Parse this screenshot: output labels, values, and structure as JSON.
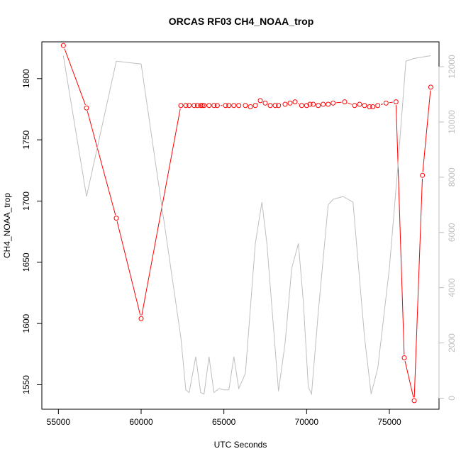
{
  "chart_data": {
    "type": "line",
    "title": "ORCAS RF03 CH4_NOAA_trop",
    "xlabel": "UTC Seconds",
    "ylabel": "CH4_NOAA_trop",
    "xlim": [
      54000,
      78000
    ],
    "ylim": [
      1530,
      1830
    ],
    "y2lim": [
      -400,
      12900
    ],
    "x_ticks": [
      55000,
      60000,
      65000,
      70000,
      75000
    ],
    "y_ticks": [
      1550,
      1600,
      1650,
      1700,
      1750,
      1800
    ],
    "y2_ticks": [
      0,
      2000,
      4000,
      6000,
      8000,
      10000,
      12000
    ],
    "series": [
      {
        "axis": "left",
        "color": "#ff0000",
        "style": "line+open-circle",
        "points": [
          [
            55300,
            1827
          ],
          [
            56700,
            1776
          ],
          [
            58500,
            1686
          ],
          [
            60000,
            1604
          ],
          [
            62400,
            1778
          ],
          [
            62700,
            1778
          ],
          [
            62900,
            1778
          ],
          [
            63200,
            1778
          ],
          [
            63400,
            1778
          ],
          [
            63600,
            1778
          ],
          [
            63700,
            1778
          ],
          [
            63800,
            1778
          ],
          [
            64100,
            1778
          ],
          [
            64400,
            1778
          ],
          [
            64600,
            1778
          ],
          [
            65100,
            1778
          ],
          [
            65300,
            1778
          ],
          [
            65600,
            1778
          ],
          [
            65900,
            1778
          ],
          [
            66300,
            1778
          ],
          [
            66600,
            1777
          ],
          [
            66900,
            1778
          ],
          [
            67200,
            1782
          ],
          [
            67500,
            1780
          ],
          [
            67800,
            1778
          ],
          [
            68100,
            1778
          ],
          [
            68300,
            1778
          ],
          [
            68700,
            1779
          ],
          [
            69000,
            1780
          ],
          [
            69300,
            1781
          ],
          [
            69700,
            1778
          ],
          [
            70000,
            1778
          ],
          [
            70200,
            1779
          ],
          [
            70400,
            1779
          ],
          [
            70700,
            1778
          ],
          [
            71000,
            1779
          ],
          [
            71300,
            1779
          ],
          [
            71600,
            1780
          ],
          [
            72300,
            1781
          ],
          [
            72900,
            1778
          ],
          [
            73200,
            1779
          ],
          [
            73500,
            1778
          ],
          [
            73800,
            1777
          ],
          [
            74000,
            1777
          ],
          [
            74300,
            1778
          ],
          [
            74800,
            1780
          ],
          [
            75400,
            1781
          ],
          [
            75900,
            1572
          ],
          [
            76500,
            1537
          ],
          [
            77000,
            1721
          ],
          [
            77500,
            1793
          ]
        ]
      },
      {
        "axis": "right",
        "color": "#bebebe",
        "style": "line",
        "points": [
          [
            55300,
            12400
          ],
          [
            56700,
            7300
          ],
          [
            58500,
            12200
          ],
          [
            60000,
            12100
          ],
          [
            62400,
            2200
          ],
          [
            62700,
            300
          ],
          [
            62900,
            200
          ],
          [
            63300,
            1500
          ],
          [
            63600,
            200
          ],
          [
            63800,
            150
          ],
          [
            64100,
            1500
          ],
          [
            64400,
            200
          ],
          [
            64700,
            350
          ],
          [
            65000,
            300
          ],
          [
            65300,
            300
          ],
          [
            65600,
            1500
          ],
          [
            65900,
            350
          ],
          [
            66300,
            900
          ],
          [
            66900,
            5600
          ],
          [
            67300,
            7100
          ],
          [
            67600,
            5600
          ],
          [
            68300,
            250
          ],
          [
            68700,
            2000
          ],
          [
            69100,
            4700
          ],
          [
            69500,
            5600
          ],
          [
            69800,
            3500
          ],
          [
            70100,
            400
          ],
          [
            70300,
            150
          ],
          [
            70700,
            3100
          ],
          [
            71300,
            7000
          ],
          [
            71600,
            7200
          ],
          [
            72200,
            7300
          ],
          [
            72800,
            7100
          ],
          [
            73500,
            2200
          ],
          [
            73900,
            150
          ],
          [
            74300,
            1100
          ],
          [
            75000,
            4700
          ],
          [
            75500,
            8300
          ],
          [
            76000,
            12200
          ],
          [
            76500,
            12300
          ],
          [
            77500,
            12400
          ]
        ]
      }
    ]
  }
}
